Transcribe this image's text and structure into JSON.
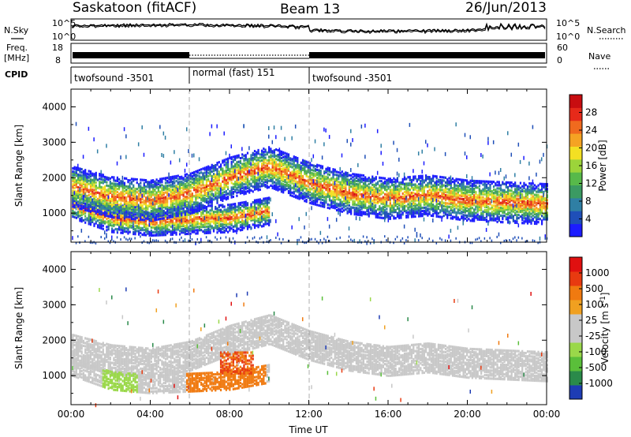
{
  "header": {
    "station": "Saskatoon (fitACF)",
    "beam": "Beam 13",
    "date": "26/Jun/2013"
  },
  "noise_panel": {
    "left_label": "N.Sky",
    "right_label": "N.Search",
    "tick_top": "10^5",
    "tick_bottom": "10^0"
  },
  "freq_panel": {
    "left_label_1": "Freq.",
    "left_label_2": "[MHz]",
    "right_label": "Nave",
    "left_ticks": [
      "18",
      "8"
    ],
    "right_ticks": [
      "60",
      "0"
    ]
  },
  "cpid_panel": {
    "label": "CPID",
    "segments": [
      {
        "name": "twofsound -3501",
        "start_hour": 0,
        "end_hour": 6
      },
      {
        "name": "normal (fast) 151",
        "start_hour": 6,
        "end_hour": 12
      },
      {
        "name": "twofsound -3501",
        "start_hour": 12,
        "end_hour": 24
      }
    ]
  },
  "chart_data": [
    {
      "type": "heatmap",
      "name": "power",
      "ylabel": "Slant Range [km]",
      "ylim": [
        180,
        4500
      ],
      "yticks": [
        "1000",
        "2000",
        "3000",
        "4000"
      ],
      "xlim": [
        0,
        24
      ],
      "colorbar": {
        "label": "Power [dB]",
        "ticks": [
          "4",
          "8",
          "12",
          "16",
          "20",
          "24",
          "28"
        ],
        "colors": [
          "#1c1cff",
          "#1f4fb8",
          "#2f7fa4",
          "#3b9a62",
          "#57b94a",
          "#9cd43a",
          "#f3e023",
          "#f5a323",
          "#f06a1e",
          "#e62a1a",
          "#c80d10"
        ]
      },
      "features": [
        {
          "label": "lower band",
          "points": [
            [
              0,
              1300
            ],
            [
              2,
              900
            ],
            [
              4,
              800
            ],
            [
              6,
              850
            ],
            [
              8,
              900
            ],
            [
              9,
              1000
            ],
            [
              10,
              1100
            ]
          ]
        },
        {
          "label": "upper band",
          "points": [
            [
              0,
              1800
            ],
            [
              2,
              1500
            ],
            [
              4,
              1400
            ],
            [
              6,
              1600
            ],
            [
              8,
              2050
            ],
            [
              10,
              2350
            ],
            [
              12,
              1900
            ],
            [
              14,
              1600
            ],
            [
              16,
              1450
            ],
            [
              18,
              1550
            ],
            [
              20,
              1400
            ],
            [
              22,
              1350
            ],
            [
              24,
              1300
            ]
          ]
        }
      ]
    },
    {
      "type": "heatmap",
      "name": "velocity",
      "ylabel": "Slant Range [km]",
      "ylim": [
        180,
        4500
      ],
      "yticks": [
        "1000",
        "2000",
        "3000",
        "4000"
      ],
      "xlim": [
        0,
        24
      ],
      "xticks": [
        "00:00",
        "04:00",
        "08:00",
        "12:00",
        "16:00",
        "20:00",
        "00:00"
      ],
      "xlabel": "Time UT",
      "colorbar": {
        "label": "Velocity [m s",
        "label_sup": "-1",
        "label_close": "]",
        "ticks": [
          "1000",
          "500",
          "100",
          "25",
          "-25",
          "-100",
          "-500",
          "-1000"
        ],
        "colors": [
          "#1e3cb4",
          "#2a8a4a",
          "#5abf3a",
          "#9ad84a",
          "#c8c8c8",
          "#c8c8c8",
          "#f0a020",
          "#f07a10",
          "#e83a10",
          "#e01010"
        ]
      }
    }
  ]
}
